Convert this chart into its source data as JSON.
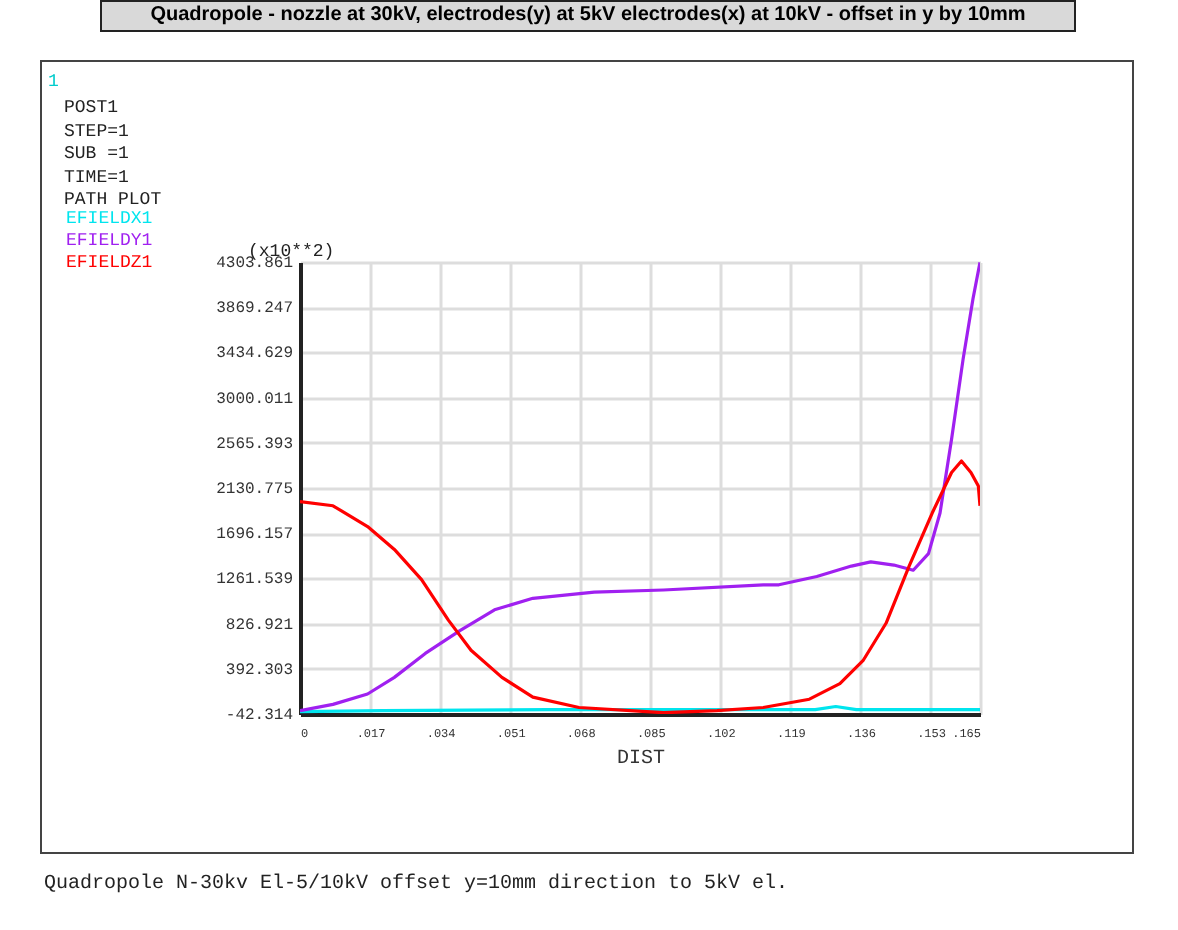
{
  "chart_data": {
    "type": "line",
    "title": "Quadropole - nozzle at 30kV, electrodes(y) at 5kV electrodes(x) at 10kV - offset in y by 10mm",
    "xlabel": "DIST",
    "annotations": [
      "1",
      "POST1",
      "STEP=1",
      "SUB =1",
      "TIME=1",
      "PATH PLOT",
      "(x10**2)",
      "Quadropole N-30kv El-5/10kV offset y=10mm direction to 5kV el."
    ],
    "series": [
      {
        "name": "EFIELDX1",
        "color": "#00e5ee",
        "x": [
          0,
          0.02,
          0.06,
          0.1,
          0.125,
          0.13,
          0.135,
          0.15,
          0.165
        ],
        "values": [
          -20,
          -10,
          0,
          0,
          0,
          30,
          0,
          0,
          0
        ]
      },
      {
        "name": "EFIELDY1",
        "color": "#a020f0",
        "x": [
          0,
          0.008,
          0.0164,
          0.0229,
          0.0304,
          0.0388,
          0.0472,
          0.0565,
          0.0714,
          0.0882,
          0.1124,
          0.1162,
          0.1254,
          0.1338,
          0.1385,
          0.1441,
          0.1488,
          0.1525,
          0.1553,
          0.1581,
          0.1609,
          0.1633,
          0.165
        ],
        "values": [
          -10,
          50,
          150,
          310,
          540,
          760,
          960,
          1070,
          1130,
          1150,
          1200,
          1200,
          1280,
          1380,
          1420,
          1390,
          1340,
          1500,
          1890,
          2600,
          3370,
          3950,
          4300
        ]
      },
      {
        "name": "EFIELDZ1",
        "color": "#ff0000",
        "x": [
          0,
          0.008,
          0.0164,
          0.0229,
          0.0295,
          0.036,
          0.0415,
          0.049,
          0.0565,
          0.0677,
          0.0882,
          0.1012,
          0.1124,
          0.1236,
          0.131,
          0.1366,
          0.1422,
          0.1478,
          0.1534,
          0.1581,
          0.1605,
          0.1628,
          0.1646,
          0.165
        ],
        "values": [
          2000,
          1960,
          1760,
          1540,
          1250,
          860,
          570,
          310,
          120,
          20,
          -30,
          -10,
          20,
          100,
          250,
          470,
          830,
          1380,
          1890,
          2280,
          2390,
          2280,
          2150,
          1960
        ]
      }
    ],
    "xlim": [
      0,
      0.165
    ],
    "xticks": [
      0,
      {
        "value": 0.017,
        "label": ".017"
      },
      {
        "value": 0.034,
        "label": ".034"
      },
      {
        "value": 0.051,
        "label": ".051"
      },
      {
        "value": 0.068,
        "label": ".068"
      },
      {
        "value": 0.085,
        "label": ".085"
      },
      {
        "value": 0.102,
        "label": ".102"
      },
      {
        "value": 0.119,
        "label": ".119"
      },
      {
        "value": 0.136,
        "label": ".136"
      },
      {
        "value": 0.153,
        "label": ".153"
      },
      {
        "value": 0.165,
        "label": ".165"
      }
    ],
    "ylim": [
      -42.314,
      4303.861
    ],
    "yticks": [
      -42.314,
      392.303,
      826.921,
      1261.539,
      1696.157,
      2130.775,
      2565.393,
      3000.011,
      3434.629,
      3869.247,
      4303.861
    ],
    "grid": true,
    "legend": "top left",
    "marker": "none",
    "line_style": "solid"
  }
}
